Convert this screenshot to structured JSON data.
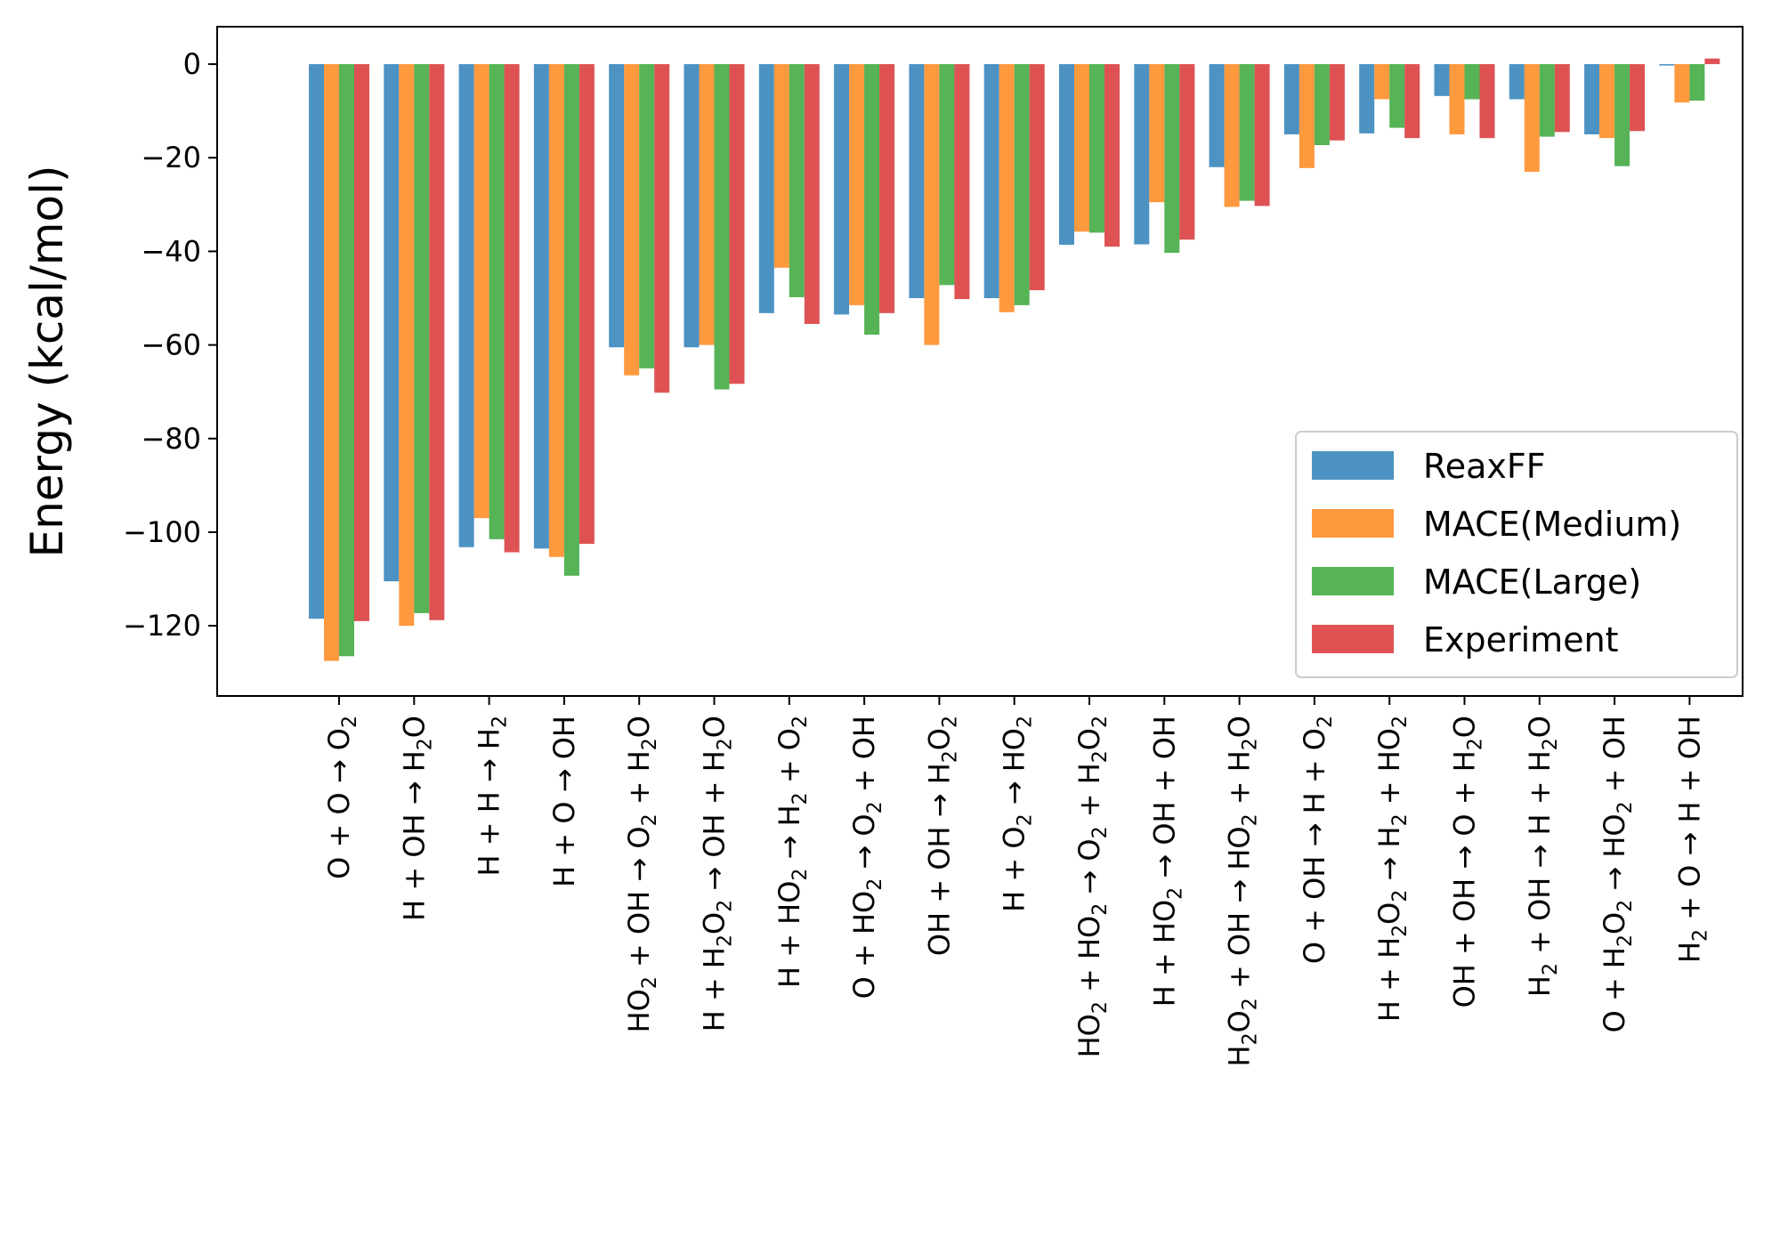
{
  "chart_data": {
    "type": "bar",
    "ylabel": "Energy (kcal/mol)",
    "xlabel": "",
    "ylim": [
      -135,
      8
    ],
    "yticks": [
      0,
      -20,
      -40,
      -60,
      -80,
      -100,
      -120
    ],
    "ytick_labels": [
      "0",
      "−20",
      "−40",
      "−60",
      "−80",
      "−100",
      "−120"
    ],
    "categories": [
      "O + O → O2",
      "H + OH → H2O",
      "H + H → H2",
      "H + O → OH",
      "HO2 + OH → O2 + H2O",
      "H + H2O2 → OH + H2O",
      "H + HO2 → H2 + O2",
      "O + HO2 → O2 + OH",
      "OH + OH → H2O2",
      "H + O2 → HO2",
      "HO2 + HO2 → O2 + H2O2",
      "H + HO2 → OH + OH",
      "H2O2 + OH → HO2 + H2O",
      "O + OH → H + O2",
      "H + H2O2 → H2 + HO2",
      "OH + OH → O + H2O",
      "H2 + OH → H + H2O",
      "O + H2O2 → HO2 + OH",
      "H2 + O → H + OH"
    ],
    "series": [
      {
        "name": "ReaxFF",
        "color": "#1f77b4",
        "values": [
          -118.5,
          -110.5,
          -103.2,
          -103.5,
          -60.5,
          -60.5,
          -53.2,
          -53.5,
          -50.0,
          -50.0,
          -38.6,
          -38.5,
          -22.0,
          -15.0,
          -14.8,
          -6.8,
          -7.5,
          -15.0,
          -0.3
        ]
      },
      {
        "name": "MACE(Medium)",
        "color": "#ff7f0e",
        "values": [
          -127.5,
          -120.0,
          -97.0,
          -105.3,
          -66.5,
          -60.0,
          -43.5,
          -51.5,
          -60.0,
          -53.0,
          -35.8,
          -29.5,
          -30.5,
          -22.2,
          -7.5,
          -15.0,
          -23.0,
          -15.8,
          -8.2
        ]
      },
      {
        "name": "MACE(Large)",
        "color": "#2ca02c",
        "values": [
          -126.5,
          -117.3,
          -101.5,
          -109.3,
          -65.0,
          -69.5,
          -49.8,
          -57.8,
          -47.2,
          -51.5,
          -36.0,
          -40.3,
          -29.2,
          -17.3,
          -13.6,
          -7.5,
          -15.5,
          -21.8,
          -7.8
        ]
      },
      {
        "name": "Experiment",
        "color": "#d62728",
        "values": [
          -119.0,
          -118.8,
          -104.3,
          -102.5,
          -70.2,
          -68.3,
          -55.5,
          -53.2,
          -50.2,
          -48.3,
          -39.0,
          -37.5,
          -30.3,
          -16.3,
          -15.8,
          -15.8,
          -14.5,
          -14.3,
          1.2
        ]
      }
    ],
    "legend": "lower-right",
    "grid": false
  }
}
